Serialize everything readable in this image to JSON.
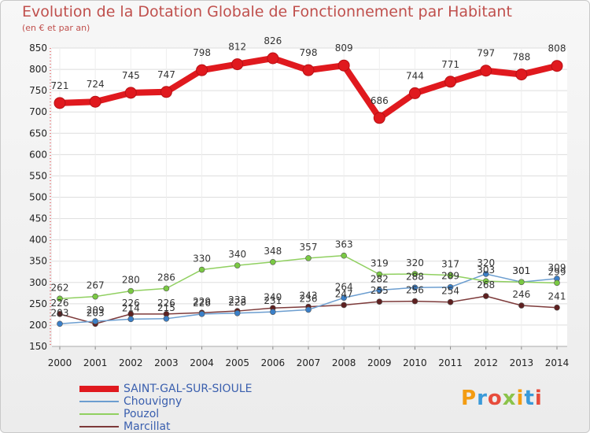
{
  "title": "Evolution de la Dotation Globale de Fonctionnement par Habitant",
  "subtitle": "(en € et par an)",
  "logo": {
    "text": "Proxiti",
    "colors": [
      "#f39c12",
      "#3a9ad9",
      "#e74c3c",
      "#8bc34a"
    ]
  },
  "chart_data": {
    "type": "line",
    "title": "Evolution de la Dotation Globale de Fonctionnement par Habitant",
    "subtitle": "(en € et par an)",
    "xlabel": "",
    "ylabel": "",
    "ylim": [
      150,
      850
    ],
    "yticks": [
      150,
      200,
      250,
      300,
      350,
      400,
      450,
      500,
      550,
      600,
      650,
      700,
      750,
      800,
      850
    ],
    "grid": true,
    "legend_position": "bottom-left",
    "categories": [
      "2000",
      "2001",
      "2002",
      "2003",
      "2004",
      "2005",
      "2006",
      "2007",
      "2008",
      "2009",
      "2010",
      "2011",
      "2012",
      "2013",
      "2014"
    ],
    "series": [
      {
        "name": "SAINT-GAL-SUR-SIOULE",
        "color": "#e0191e",
        "emphasis": true,
        "values": [
          721,
          724,
          745,
          747,
          798,
          812,
          826,
          798,
          809,
          686,
          744,
          771,
          797,
          788,
          808
        ]
      },
      {
        "name": "Chouvigny",
        "color": "#6c9ed0",
        "marker": "#3a7fc8",
        "values": [
          203,
          209,
          214,
          215,
          226,
          228,
          231,
          236,
          264,
          282,
          288,
          289,
          320,
          301,
          309
        ]
      },
      {
        "name": "Pouzol",
        "color": "#90d060",
        "marker": "#7ac943",
        "values": [
          262,
          267,
          280,
          286,
          330,
          340,
          348,
          357,
          363,
          319,
          320,
          317,
          303,
          301,
          299
        ]
      },
      {
        "name": "Marcillat",
        "color": "#7d3a3a",
        "marker": "#5e2020",
        "values": [
          226,
          203,
          226,
          226,
          229,
          233,
          240,
          243,
          247,
          255,
          256,
          254,
          268,
          246,
          241
        ]
      }
    ],
    "data_labels": [
      {
        "series": 0,
        "values": [
          721,
          724,
          745,
          747,
          798,
          812,
          826,
          798,
          809,
          686,
          744,
          771,
          797,
          788,
          808
        ]
      },
      {
        "series": 2,
        "values": [
          262,
          267,
          280,
          286,
          330,
          340,
          348,
          357,
          363,
          319,
          320,
          317,
          303,
          301,
          299
        ]
      },
      {
        "series": 1,
        "values": [
          203,
          209,
          214,
          215,
          226,
          228,
          231,
          236,
          264,
          282,
          288,
          289,
          320,
          301,
          309
        ]
      },
      {
        "series": 3,
        "values": [
          226,
          203,
          226,
          226,
          229,
          233,
          240,
          243,
          247,
          255,
          256,
          254,
          268,
          246,
          241
        ]
      }
    ]
  }
}
